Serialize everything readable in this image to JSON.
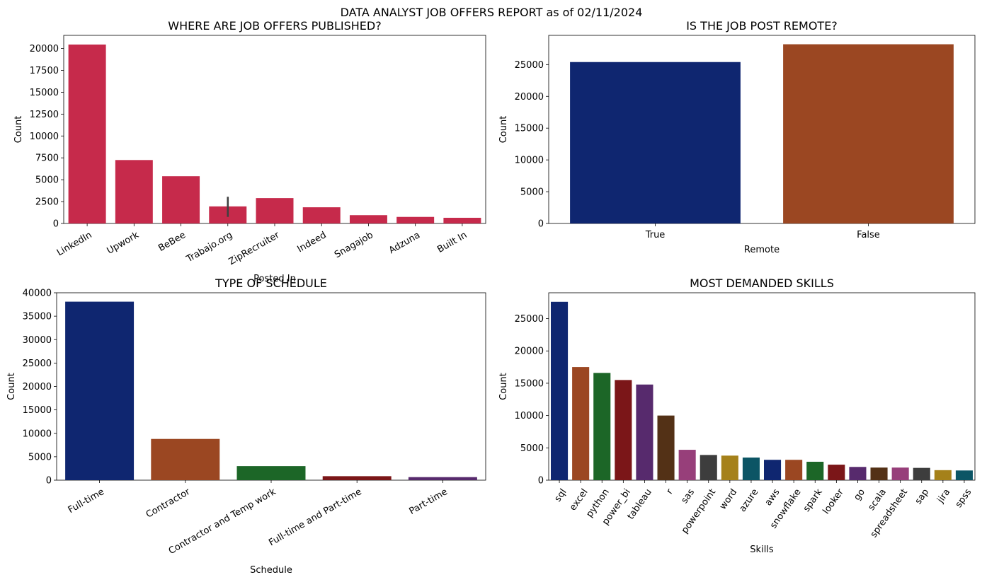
{
  "figure": {
    "suptitle": "DATA ANALYST JOB OFFERS REPORT as of 02/11/2024"
  },
  "chart_data": [
    {
      "id": "posted-in",
      "type": "bar",
      "title": "WHERE ARE JOB OFFERS PUBLISHED?",
      "xlabel": "Posted In",
      "ylabel": "Count",
      "categories": [
        "LinkedIn",
        "Upwork",
        "BeBee",
        "Trabajo.org",
        "ZipRecruiter",
        "Indeed",
        "Snagajob",
        "Adzuna",
        "Built In"
      ],
      "values": [
        20450,
        7250,
        5400,
        1950,
        2900,
        1850,
        950,
        750,
        650
      ],
      "error_bars": [
        {
          "category": "Trabajo.org",
          "low": 750,
          "high": 3050
        }
      ],
      "ylim": [
        0,
        21500
      ],
      "yticks": [
        0,
        2500,
        5000,
        7500,
        10000,
        12500,
        15000,
        17500,
        20000
      ],
      "colors": [
        "#c62a4b"
      ],
      "error_color": "#404040",
      "grid": false,
      "xtick_rotation": 30
    },
    {
      "id": "remote",
      "type": "bar",
      "title": "IS THE JOB POST REMOTE?",
      "xlabel": "Remote",
      "ylabel": "Count",
      "categories": [
        "True",
        "False"
      ],
      "values": [
        25400,
        28200
      ],
      "ylim": [
        0,
        29600
      ],
      "yticks": [
        0,
        5000,
        10000,
        15000,
        20000,
        25000
      ],
      "colors": [
        "#0f2670",
        "#9b4722"
      ],
      "grid": false,
      "xtick_rotation": 0
    },
    {
      "id": "schedule",
      "type": "bar",
      "title": "TYPE OF SCHEDULE",
      "xlabel": "Schedule",
      "ylabel": "Count",
      "categories": [
        "Full-time",
        "Contractor",
        "Contractor and Temp work",
        "Full-time and Part-time",
        "Part-time"
      ],
      "values": [
        38100,
        8800,
        3000,
        850,
        650
      ],
      "ylim": [
        0,
        40000
      ],
      "yticks": [
        0,
        5000,
        10000,
        15000,
        20000,
        25000,
        30000,
        35000,
        40000
      ],
      "colors": [
        "#0f2670",
        "#9b4722",
        "#1c6627",
        "#7b1618",
        "#572a6d"
      ],
      "grid": false,
      "xtick_rotation": 30
    },
    {
      "id": "skills",
      "type": "bar",
      "title": "MOST DEMANDED SKILLS",
      "xlabel": "Skills",
      "ylabel": "Count",
      "categories": [
        "sql",
        "excel",
        "python",
        "power_bi",
        "tableau",
        "r",
        "sas",
        "powerpoint",
        "word",
        "azure",
        "aws",
        "snowflake",
        "spark",
        "looker",
        "go",
        "scala",
        "spreadsheet",
        "sap",
        "jira",
        "spss"
      ],
      "values": [
        27600,
        17500,
        16600,
        15500,
        14800,
        10000,
        4700,
        3900,
        3800,
        3500,
        3150,
        3150,
        2850,
        2400,
        2050,
        1950,
        1950,
        1900,
        1550,
        1500
      ],
      "ylim": [
        0,
        29000
      ],
      "yticks": [
        0,
        5000,
        10000,
        15000,
        20000,
        25000
      ],
      "colors": [
        "#0f2670",
        "#9b4722",
        "#1c6627",
        "#7b1618",
        "#572a6d",
        "#533116",
        "#973f7a",
        "#3d3d3d",
        "#a5811a",
        "#0c5565"
      ],
      "grid": false,
      "xtick_rotation": 55
    }
  ]
}
